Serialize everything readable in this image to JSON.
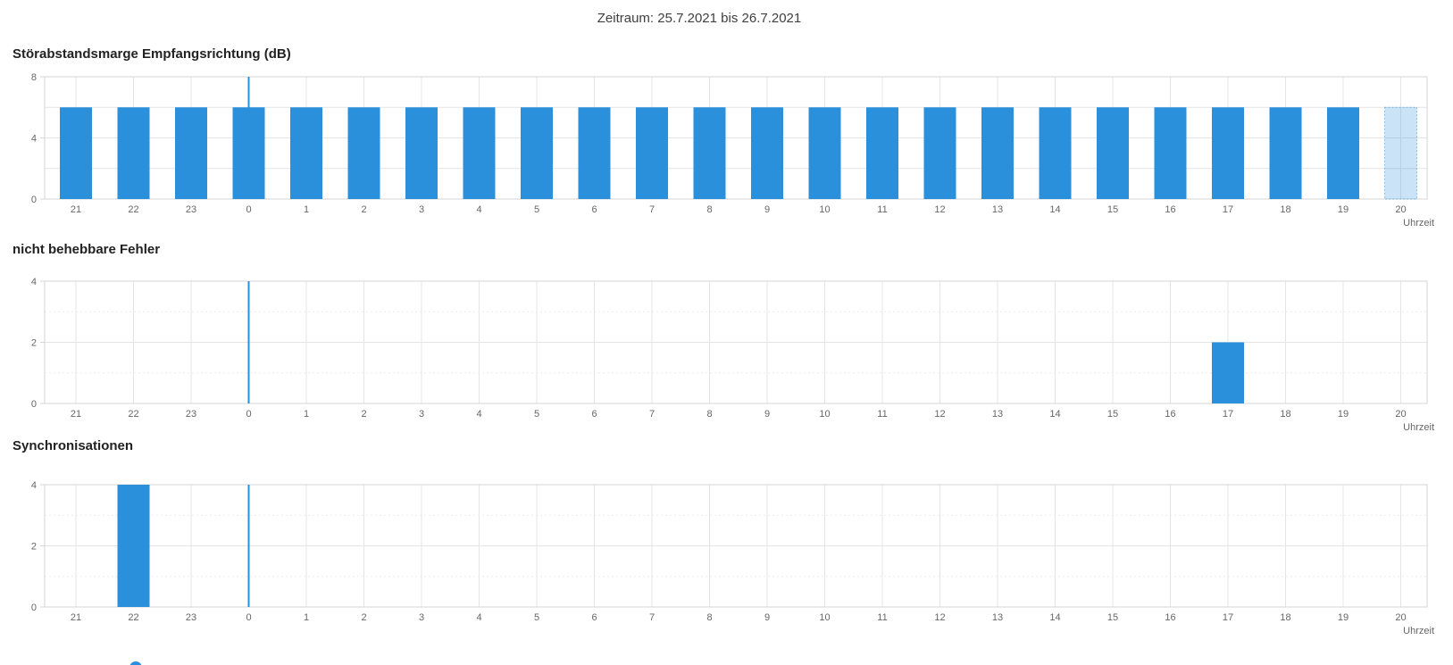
{
  "header": {
    "period": "Zeitraum: 25.7.2021 bis 26.7.2021"
  },
  "colors": {
    "bar": "#2b90dc",
    "bar_current_fill": "rgba(43,144,220,0.25)",
    "bar_current_stroke": "rgba(43,144,220,0.5)",
    "midnight_line": "#2b90dc",
    "grid": "#e4e4e4",
    "grid_minor": "#ececec",
    "plot_border": "#d5d5d5",
    "tick_text": "#666666",
    "title_text": "#222222",
    "header_text": "#404040",
    "radio": "#2b90dc"
  },
  "chart_data": [
    {
      "type": "bar",
      "title": "Störabstandsmarge Empfangsrichtung (dB)",
      "categories": [
        "21",
        "22",
        "23",
        "0",
        "1",
        "2",
        "3",
        "4",
        "5",
        "6",
        "7",
        "8",
        "9",
        "10",
        "11",
        "12",
        "13",
        "14",
        "15",
        "16",
        "17",
        "18",
        "19",
        "20"
      ],
      "values": [
        6,
        6,
        6,
        6,
        6,
        6,
        6,
        6,
        6,
        6,
        6,
        6,
        6,
        6,
        6,
        6,
        6,
        6,
        6,
        6,
        6,
        6,
        6,
        6
      ],
      "current_hour_index": 23,
      "midnight_index": 3,
      "ylim": [
        0,
        8
      ],
      "yticks": [
        0,
        4,
        8
      ],
      "ygrid": [
        2,
        4,
        6,
        8
      ],
      "ygrid_minor": [],
      "xlabel": "Uhrzeit",
      "ylabel": "",
      "legend": "none",
      "grid": "on"
    },
    {
      "type": "bar",
      "title": "nicht behebbare Fehler",
      "categories": [
        "21",
        "22",
        "23",
        "0",
        "1",
        "2",
        "3",
        "4",
        "5",
        "6",
        "7",
        "8",
        "9",
        "10",
        "11",
        "12",
        "13",
        "14",
        "15",
        "16",
        "17",
        "18",
        "19",
        "20"
      ],
      "values": [
        0,
        0,
        0,
        0,
        0,
        0,
        0,
        0,
        0,
        0,
        0,
        0,
        0,
        0,
        0,
        0,
        0,
        0,
        0,
        0,
        2,
        0,
        0,
        0
      ],
      "current_hour_index": 23,
      "midnight_index": 3,
      "ylim": [
        0,
        4
      ],
      "yticks": [
        0,
        2,
        4
      ],
      "ygrid": [
        2,
        4
      ],
      "ygrid_minor": [
        1,
        3
      ],
      "xlabel": "Uhrzeit",
      "ylabel": "",
      "legend": "none",
      "grid": "on"
    },
    {
      "type": "bar",
      "title": "Synchronisationen",
      "categories": [
        "21",
        "22",
        "23",
        "0",
        "1",
        "2",
        "3",
        "4",
        "5",
        "6",
        "7",
        "8",
        "9",
        "10",
        "11",
        "12",
        "13",
        "14",
        "15",
        "16",
        "17",
        "18",
        "19",
        "20"
      ],
      "values": [
        0,
        4,
        0,
        0,
        0,
        0,
        0,
        0,
        0,
        0,
        0,
        0,
        0,
        0,
        0,
        0,
        0,
        0,
        0,
        0,
        0,
        0,
        0,
        0
      ],
      "current_hour_index": 23,
      "midnight_index": 3,
      "ylim": [
        0,
        4
      ],
      "yticks": [
        0,
        2,
        4
      ],
      "ygrid": [
        2,
        4
      ],
      "ygrid_minor": [
        1,
        3
      ],
      "xlabel": "Uhrzeit",
      "ylabel": "",
      "legend": "none",
      "grid": "on"
    }
  ]
}
